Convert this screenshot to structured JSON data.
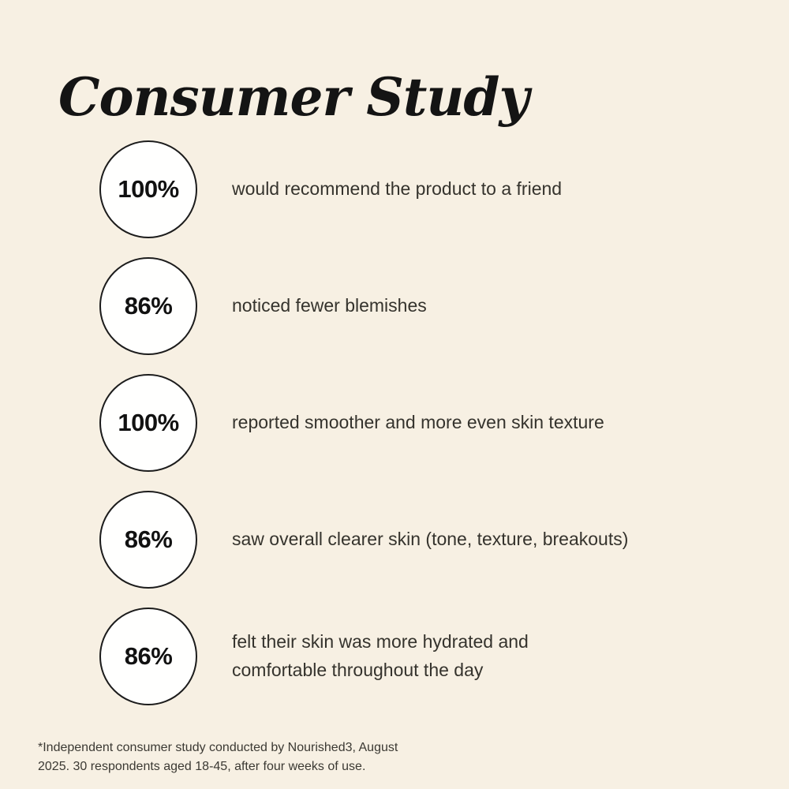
{
  "header": {
    "title": "Consumer Study"
  },
  "stats": [
    {
      "value": "100%",
      "label": "would recommend the product to a friend"
    },
    {
      "value": "86%",
      "label": "noticed fewer blemishes"
    },
    {
      "value": "100%",
      "label": "reported smoother and more even skin texture"
    },
    {
      "value": "86%",
      "label": "saw overall clearer skin (tone, texture, breakouts)"
    },
    {
      "value": "86%",
      "label": "felt their skin was more hydrated and\ncomfortable throughout the day"
    }
  ],
  "footnote": "*Independent consumer study conducted by Nourished3, August\n2025. 30 respondents aged 18-45, after four weeks of use.",
  "colors": {
    "background": "#f7f0e3",
    "circle_fill": "#fffffe",
    "circle_border": "#1c1c1c",
    "title_text": "#141414",
    "body_text": "#35332d"
  }
}
